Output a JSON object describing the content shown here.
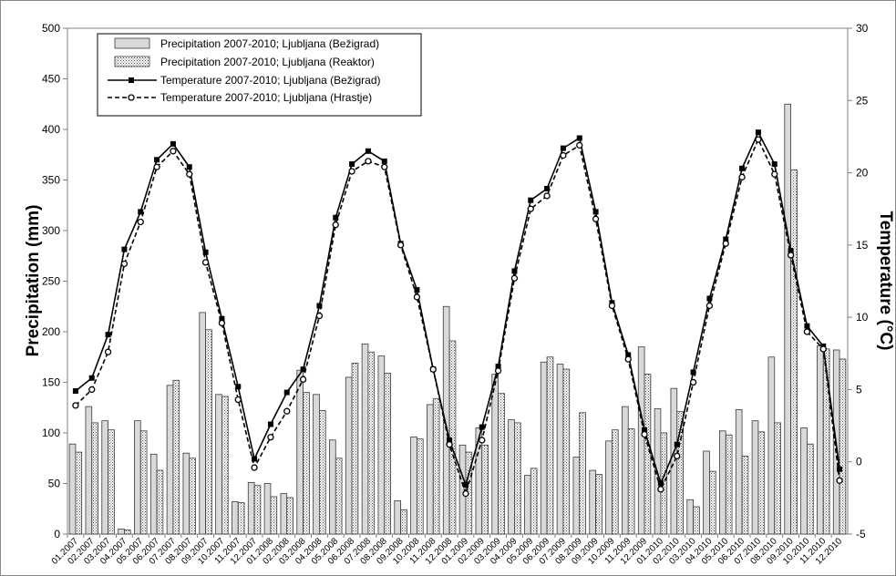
{
  "chart_data": {
    "type": "bar",
    "ylabel": "Precipitation (mm)",
    "y2label": "Temperature (°C)",
    "ylim": [
      0,
      500
    ],
    "y2lim": [
      -5,
      30
    ],
    "yticks": [
      0,
      50,
      100,
      150,
      200,
      250,
      300,
      350,
      400,
      450,
      500
    ],
    "y2ticks": [
      -5,
      0,
      5,
      10,
      15,
      20,
      25,
      30
    ],
    "grid": false,
    "legend_position": "top-left",
    "categories": [
      "01.2007",
      "02.2007",
      "03.2007",
      "04.2007",
      "05.2007",
      "06.2007",
      "07.2007",
      "08.2007",
      "09.2007",
      "10.2007",
      "11.2007",
      "12.2007",
      "01.2008",
      "02.2008",
      "03.2008",
      "04.2008",
      "05.2008",
      "06.2008",
      "07.2008",
      "08.2008",
      "09.2008",
      "10.2008",
      "11.2008",
      "12.2008",
      "01.2009",
      "02.2009",
      "03.2009",
      "04.2009",
      "05.2009",
      "06.2009",
      "07.2009",
      "08.2009",
      "09.2009",
      "10.2009",
      "11.2009",
      "12.2009",
      "01.2010",
      "02.2010",
      "03.2010",
      "04.2010",
      "05.2010",
      "06.2010",
      "07.2010",
      "08.2010",
      "09.2010",
      "10.2010",
      "11.2010",
      "12.2010"
    ],
    "series": [
      {
        "name": "Precipitation 2007-2010; Ljubljana (Bežigrad)",
        "type": "bar",
        "axis": "left",
        "style": "solid",
        "values": [
          89,
          126,
          112,
          5,
          112,
          79,
          147,
          80,
          219,
          138,
          32,
          51,
          50,
          40,
          162,
          138,
          93,
          155,
          188,
          176,
          33,
          96,
          128,
          225,
          88,
          105,
          158,
          113,
          58,
          170,
          168,
          76,
          63,
          92,
          126,
          185,
          124,
          144,
          34,
          82,
          102,
          123,
          112,
          175,
          425,
          105,
          186,
          182
        ]
      },
      {
        "name": "Precipitation 2007-2010; Ljubljana (Reaktor)",
        "type": "bar",
        "axis": "left",
        "style": "dotted",
        "values": [
          81,
          110,
          103,
          4,
          102,
          63,
          152,
          75,
          202,
          136,
          31,
          48,
          37,
          36,
          140,
          122,
          75,
          169,
          180,
          159,
          24,
          94,
          134,
          191,
          81,
          88,
          139,
          110,
          65,
          175,
          163,
          120,
          59,
          103,
          104,
          158,
          100,
          121,
          27,
          62,
          98,
          77,
          101,
          110,
          360,
          89,
          183,
          173
        ]
      },
      {
        "name": "Temperature 2007-2010; Ljubljana (Bežigrad)",
        "type": "line",
        "axis": "right",
        "marker": "square",
        "line": "solid",
        "values": [
          4.9,
          5.8,
          8.8,
          14.7,
          17.3,
          20.9,
          22.0,
          20.4,
          14.5,
          9.9,
          5.2,
          0.2,
          2.6,
          4.8,
          6.4,
          10.8,
          16.9,
          20.6,
          21.5,
          20.8,
          15.1,
          11.9,
          6.4,
          1.5,
          -1.6,
          2.4,
          6.6,
          13.2,
          18.1,
          18.9,
          21.7,
          22.4,
          17.3,
          11.0,
          7.4,
          2.2,
          -1.5,
          1.2,
          6.2,
          11.3,
          15.4,
          20.3,
          22.8,
          20.6,
          14.6,
          9.4,
          8.0,
          -0.5
        ]
      },
      {
        "name": "Temperature 2007-2010; Ljubljana (Hrastje)",
        "type": "line",
        "axis": "right",
        "marker": "circle-open",
        "line": "dashed",
        "values": [
          3.9,
          5.0,
          7.6,
          13.7,
          16.6,
          20.4,
          21.5,
          19.9,
          13.8,
          9.6,
          4.3,
          -0.4,
          1.7,
          3.5,
          5.7,
          10.1,
          16.4,
          20.1,
          20.8,
          20.4,
          15.0,
          11.4,
          6.4,
          1.2,
          -2.2,
          1.5,
          6.3,
          12.7,
          17.5,
          18.4,
          21.2,
          21.9,
          16.8,
          10.8,
          7.1,
          1.9,
          -1.9,
          0.4,
          5.5,
          10.8,
          15.1,
          19.7,
          22.3,
          19.9,
          14.3,
          9.0,
          7.8,
          -1.3
        ]
      }
    ]
  }
}
